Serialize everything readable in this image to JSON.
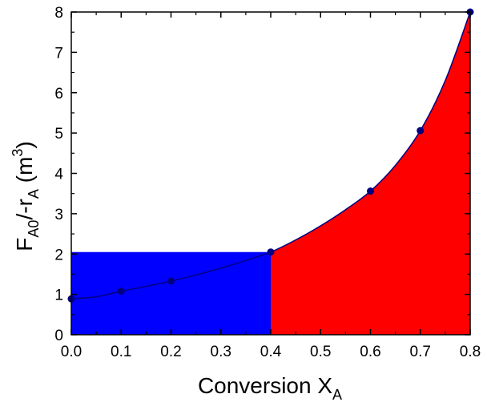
{
  "chart_data": {
    "type": "scatter",
    "xlabel": {
      "main": "Conversion X",
      "sub": "A"
    },
    "ylabel": {
      "p1": "F",
      "sub1": "A0",
      "p2": "/-r",
      "sub2": "A",
      "p3": " (m",
      "sup": "3",
      "p4": ")"
    },
    "xlim": [
      0.0,
      0.8
    ],
    "ylim": [
      0,
      8
    ],
    "xticks": [
      "0.0",
      "0.1",
      "0.2",
      "0.3",
      "0.4",
      "0.5",
      "0.6",
      "0.7",
      "0.8"
    ],
    "yticks": [
      "0",
      "1",
      "2",
      "3",
      "4",
      "5",
      "6",
      "7",
      "8"
    ],
    "grid": false,
    "series": [
      {
        "points": [
          {
            "x": 0.0,
            "y": 0.89
          },
          {
            "x": 0.1,
            "y": 1.08
          },
          {
            "x": 0.2,
            "y": 1.33
          },
          {
            "x": 0.4,
            "y": 2.05
          },
          {
            "x": 0.6,
            "y": 3.56
          },
          {
            "x": 0.7,
            "y": 5.06
          },
          {
            "x": 0.8,
            "y": 8.0
          }
        ],
        "curve": [
          [
            0.0,
            0.89
          ],
          [
            0.05,
            0.94
          ],
          [
            0.1,
            1.08
          ],
          [
            0.15,
            1.2
          ],
          [
            0.2,
            1.33
          ],
          [
            0.25,
            1.48
          ],
          [
            0.3,
            1.65
          ],
          [
            0.35,
            1.84
          ],
          [
            0.4,
            2.05
          ],
          [
            0.45,
            2.35
          ],
          [
            0.5,
            2.7
          ],
          [
            0.55,
            3.1
          ],
          [
            0.6,
            3.56
          ],
          [
            0.65,
            4.2
          ],
          [
            0.7,
            5.06
          ],
          [
            0.75,
            6.3
          ],
          [
            0.8,
            8.0
          ]
        ],
        "marker_color": "#000080",
        "line_color": "#000080"
      }
    ],
    "regions": [
      {
        "kind": "rectangle",
        "x_from": 0.0,
        "x_to": 0.4,
        "y_from": 0,
        "y_to": 2.05,
        "color": "#0000ff"
      },
      {
        "kind": "under-curve",
        "x_from": 0.4,
        "x_to": 0.8,
        "color": "#ff0000"
      }
    ]
  }
}
